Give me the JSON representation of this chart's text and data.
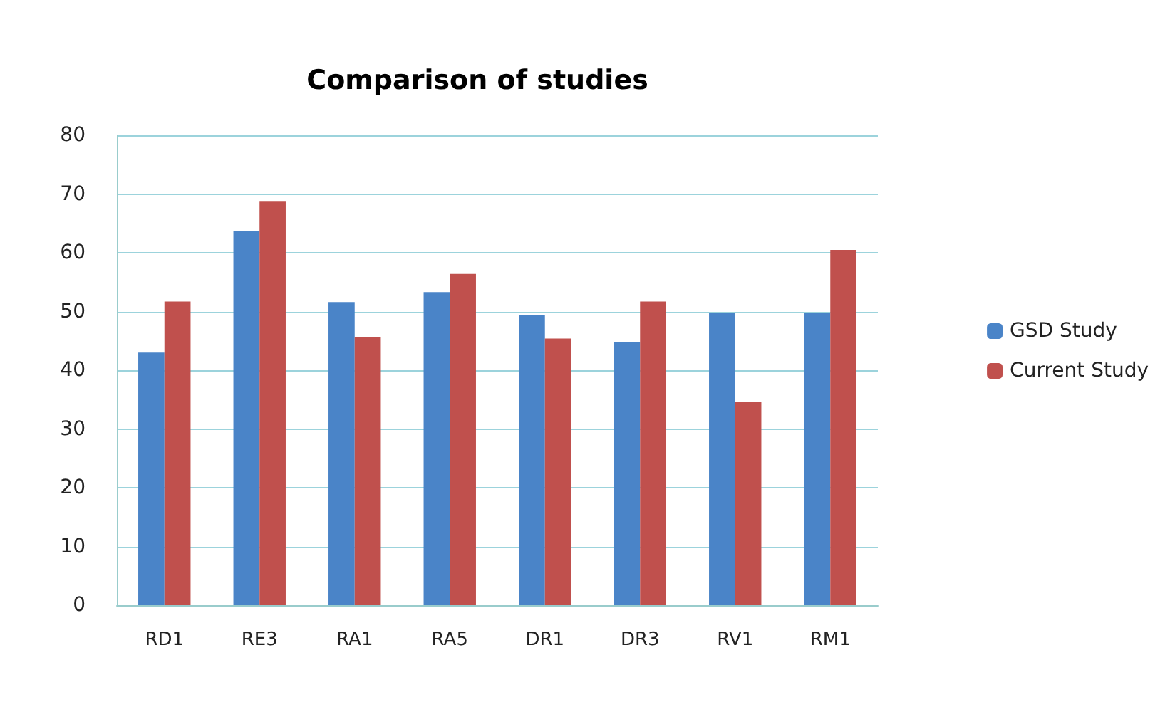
{
  "chart_data": {
    "type": "bar",
    "title": "Comparison of studies",
    "categories": [
      "RD1",
      "RE3",
      "RA1",
      "RA5",
      "DR1",
      "DR3",
      "RV1",
      "RM1"
    ],
    "series": [
      {
        "name": "GSD Study",
        "color": "#4a84c8",
        "values": [
          43,
          63.7,
          51.6,
          53.3,
          49.4,
          44.8,
          49.7,
          49.7
        ]
      },
      {
        "name": "Current Study",
        "color": "#c0504d",
        "values": [
          51.7,
          68.7,
          45.7,
          56.4,
          45.4,
          51.7,
          34.6,
          60.5
        ]
      }
    ],
    "ylim": [
      0,
      80
    ],
    "yticks": [
      0,
      10,
      20,
      30,
      40,
      50,
      60,
      70,
      80
    ],
    "grid": "y",
    "legend": "right"
  }
}
